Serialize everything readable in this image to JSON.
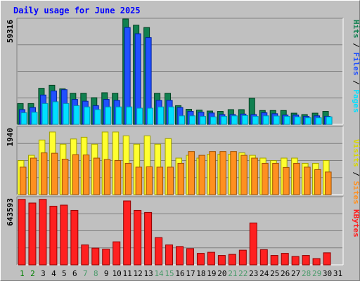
{
  "colors": {
    "pages": "#00e0ff",
    "pages_dark": "#0090b0",
    "files": "#2050ff",
    "files_dark": "#0020a0",
    "hits": "#108050",
    "hits_dark": "#004020",
    "visits": "#ffff30",
    "visits_dark": "#a0a000",
    "sites": "#ff9020",
    "sites_dark": "#a05000",
    "kbytes": "#ff2020",
    "kbytes_dark": "#900000",
    "weekday_label": "#008000",
    "weekend_label": "#4a9a6a",
    "grid": "#808080",
    "panel_bg": "#c0c0c0"
  },
  "chart_data": [
    {
      "type": "bar",
      "title": "Daily usage for June 2025",
      "ymax_label": "59316",
      "ylim": [
        0,
        59316
      ],
      "grid": true,
      "legend": [
        "Pages",
        "Files",
        "Hits"
      ],
      "legend_separator": " / ",
      "categories": [
        "1",
        "2",
        "3",
        "4",
        "5",
        "6",
        "7",
        "8",
        "9",
        "10",
        "11",
        "12",
        "13",
        "14",
        "15",
        "16",
        "17",
        "18",
        "19",
        "20",
        "21",
        "22",
        "23",
        "24",
        "25",
        "26",
        "27",
        "28",
        "29",
        "30",
        "31"
      ],
      "series": [
        {
          "name": "Hits",
          "values": [
            11700,
            11700,
            20300,
            22000,
            20000,
            17500,
            17500,
            15000,
            17800,
            17500,
            59316,
            55800,
            54500,
            17500,
            17500,
            10500,
            8500,
            8000,
            7500,
            7300,
            8300,
            8300,
            14700,
            7800,
            7800,
            7800,
            6300,
            5500,
            6300,
            7300,
            null
          ]
        },
        {
          "name": "Files",
          "values": [
            8300,
            9500,
            16500,
            18800,
            19500,
            14000,
            13000,
            10500,
            14000,
            13500,
            54500,
            51000,
            48800,
            13500,
            13500,
            9500,
            7300,
            6800,
            6400,
            5500,
            5500,
            5800,
            5500,
            6500,
            6000,
            5200,
            5200,
            4500,
            4800,
            4500,
            null
          ]
        },
        {
          "name": "Pages",
          "values": [
            6500,
            6800,
            11700,
            12700,
            11700,
            10500,
            9800,
            8300,
            9800,
            9800,
            9800,
            9100,
            9100,
            9800,
            9800,
            4800,
            4800,
            4500,
            4200,
            4500,
            4800,
            5000,
            4500,
            4800,
            4700,
            4500,
            4200,
            3700,
            3700,
            4200,
            null
          ]
        }
      ]
    },
    {
      "type": "bar",
      "ymax_label": "1940",
      "ylim": [
        0,
        1940
      ],
      "grid": true,
      "legend": [
        "Sites",
        "Visits"
      ],
      "legend_separator": " / ",
      "categories": [
        "1",
        "2",
        "3",
        "4",
        "5",
        "6",
        "7",
        "8",
        "9",
        "10",
        "11",
        "12",
        "13",
        "14",
        "15",
        "16",
        "17",
        "18",
        "19",
        "20",
        "21",
        "22",
        "23",
        "24",
        "25",
        "26",
        "27",
        "28",
        "29",
        "30",
        "31"
      ],
      "series": [
        {
          "name": "Visits",
          "values": [
            980,
            1130,
            1570,
            1800,
            1450,
            1600,
            1650,
            1450,
            1800,
            1800,
            1690,
            1450,
            1690,
            1450,
            1610,
            1050,
            1130,
            1050,
            1160,
            1160,
            1160,
            1200,
            1130,
            1050,
            980,
            1050,
            1050,
            900,
            900,
            980,
            null
          ]
        },
        {
          "name": "Sites",
          "values": [
            790,
            1050,
            1200,
            1190,
            1020,
            1150,
            1140,
            1050,
            1010,
            980,
            900,
            790,
            800,
            790,
            790,
            900,
            1240,
            1130,
            1240,
            1240,
            1240,
            1130,
            1050,
            900,
            900,
            780,
            900,
            790,
            720,
            650,
            null
          ]
        }
      ]
    },
    {
      "type": "bar",
      "ymax_label": "643593",
      "ylim": [
        0,
        643593
      ],
      "grid": true,
      "legend": [
        "KBytes"
      ],
      "categories": [
        "1",
        "2",
        "3",
        "4",
        "5",
        "6",
        "7",
        "8",
        "9",
        "10",
        "11",
        "12",
        "13",
        "14",
        "15",
        "16",
        "17",
        "18",
        "19",
        "20",
        "21",
        "22",
        "23",
        "24",
        "25",
        "26",
        "27",
        "28",
        "29",
        "30",
        "31"
      ],
      "series": [
        {
          "name": "KBytes",
          "values": [
            625000,
            590000,
            625000,
            560000,
            570000,
            520000,
            190000,
            160000,
            150000,
            220000,
            610000,
            520000,
            500000,
            260000,
            190000,
            175000,
            155000,
            110000,
            120000,
            90000,
            100000,
            140000,
            400000,
            145000,
            90000,
            110000,
            80000,
            90000,
            60000,
            115000,
            null
          ]
        }
      ]
    }
  ],
  "x_label_colors": [
    "weekday",
    "weekday",
    "plain",
    "plain",
    "plain",
    "plain",
    "weekend",
    "weekend",
    "plain",
    "plain",
    "plain",
    "plain",
    "plain",
    "weekend",
    "weekend",
    "plain",
    "plain",
    "plain",
    "plain",
    "plain",
    "weekend",
    "weekend",
    "plain",
    "plain",
    "plain",
    "plain",
    "plain",
    "weekend",
    "weekend",
    "plain",
    "plain"
  ]
}
